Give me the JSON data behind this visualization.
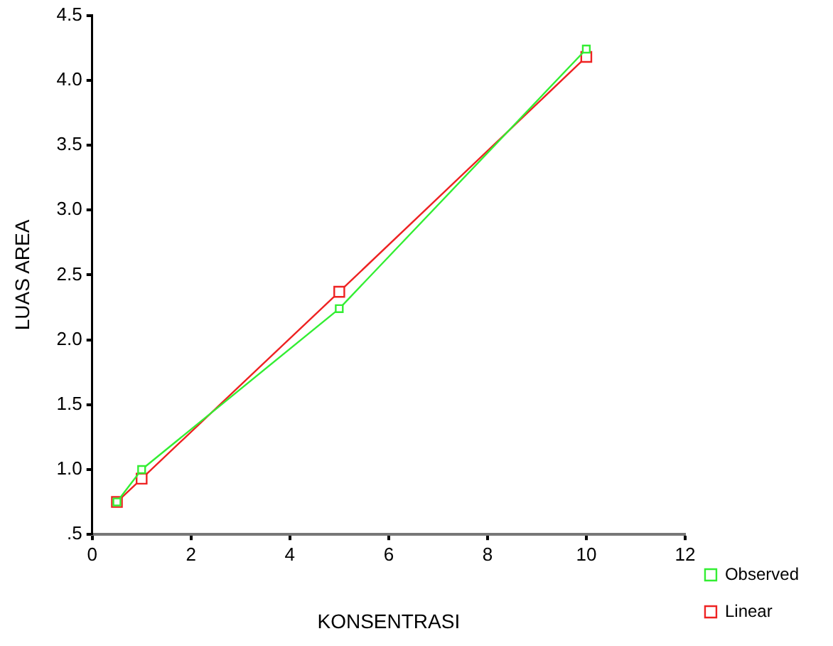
{
  "chart_data": {
    "type": "line",
    "xlabel": "KONSENTRASI",
    "ylabel": "LUAS AREA",
    "x": [
      0.5,
      1,
      5,
      10
    ],
    "series": [
      {
        "name": "Observed",
        "color": "#33ee33",
        "values": [
          0.75,
          1.0,
          2.24,
          4.24
        ]
      },
      {
        "name": "Linear",
        "color": "#ee2222",
        "values": [
          0.75,
          0.93,
          2.37,
          4.18
        ]
      }
    ],
    "xlim": [
      0,
      12
    ],
    "xticks": [
      0,
      2,
      4,
      6,
      8,
      10,
      12
    ],
    "ylim": [
      0.5,
      4.5
    ],
    "yticks": [
      {
        "value": 0.5,
        "label": ".5"
      },
      {
        "value": 1,
        "label": "1.0"
      },
      {
        "value": 1.5,
        "label": "1.5"
      },
      {
        "value": 2,
        "label": "2.0"
      },
      {
        "value": 2.5,
        "label": "2.5"
      },
      {
        "value": 3,
        "label": "3.0"
      },
      {
        "value": 3.5,
        "label": "3.5"
      },
      {
        "value": 4,
        "label": "4.0"
      },
      {
        "value": 4.5,
        "label": "4.5"
      }
    ],
    "grid": false,
    "legend": "bottom right",
    "marker": "square",
    "line_style": "solid"
  }
}
